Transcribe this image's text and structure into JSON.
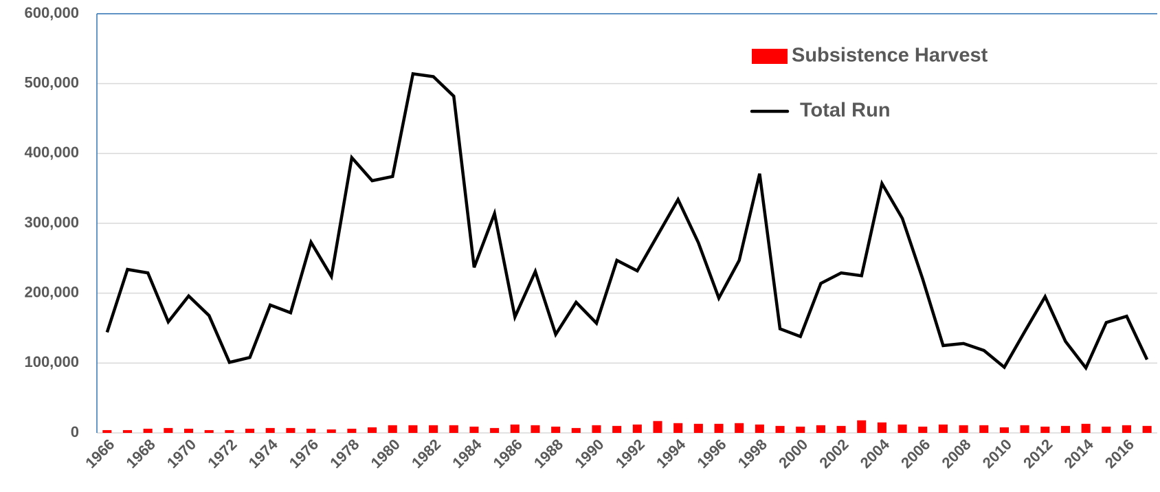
{
  "chart_data": {
    "type": "combo",
    "categories": [
      "1966",
      null,
      "1968",
      null,
      "1970",
      null,
      "1972",
      null,
      "1974",
      null,
      "1976",
      null,
      "1978",
      null,
      "1980",
      null,
      "1982",
      null,
      "1984",
      null,
      "1986",
      null,
      "1988",
      null,
      "1990",
      null,
      "1992",
      null,
      "1994",
      null,
      "1996",
      null,
      "1998",
      null,
      "2000",
      null,
      "2002",
      null,
      "2004",
      null,
      "2006",
      null,
      "2008",
      null,
      "2010",
      null,
      "2012",
      null,
      "2014",
      null,
      "2016",
      null
    ],
    "series": [
      {
        "name": "Subsistence Harvest",
        "type": "bar",
        "color": "#ff0000",
        "values": [
          4000,
          4000,
          6000,
          7000,
          6000,
          4000,
          4000,
          6000,
          7000,
          7000,
          6000,
          5000,
          6000,
          8000,
          11000,
          11000,
          11000,
          11000,
          9000,
          7000,
          12000,
          11000,
          9000,
          7000,
          11000,
          10000,
          12000,
          17000,
          14000,
          13000,
          13000,
          14000,
          12000,
          10000,
          9000,
          11000,
          10000,
          18000,
          15000,
          12000,
          9000,
          12000,
          11000,
          11000,
          8000,
          11000,
          9000,
          10000,
          13000,
          9000,
          11000,
          10000
        ]
      },
      {
        "name": "Total Run",
        "type": "line",
        "color": "#000000",
        "values": [
          144000,
          234000,
          229000,
          159000,
          196000,
          168000,
          101000,
          108000,
          183000,
          172000,
          273000,
          224000,
          394000,
          361000,
          367000,
          514000,
          510000,
          482000,
          237000,
          314000,
          166000,
          231000,
          141000,
          187000,
          157000,
          247000,
          232000,
          283000,
          334000,
          272000,
          193000,
          247000,
          371000,
          149000,
          138000,
          214000,
          229000,
          225000,
          357000,
          307000,
          220000,
          125000,
          128000,
          118000,
          94000,
          145000,
          195000,
          131000,
          93000,
          158000,
          167000,
          105000
        ]
      }
    ],
    "ylim": [
      0,
      600000
    ],
    "yticks": [
      0,
      {
        "value": 100000,
        "label": "100,000"
      },
      {
        "value": 200000,
        "label": "200,000"
      },
      {
        "value": 300000,
        "label": "300,000"
      },
      {
        "value": 400000,
        "label": "400,000"
      },
      {
        "value": 500000,
        "label": "500,000"
      },
      {
        "value": 600000,
        "label": "600,000"
      }
    ],
    "grid": true,
    "legend": "upper right"
  }
}
